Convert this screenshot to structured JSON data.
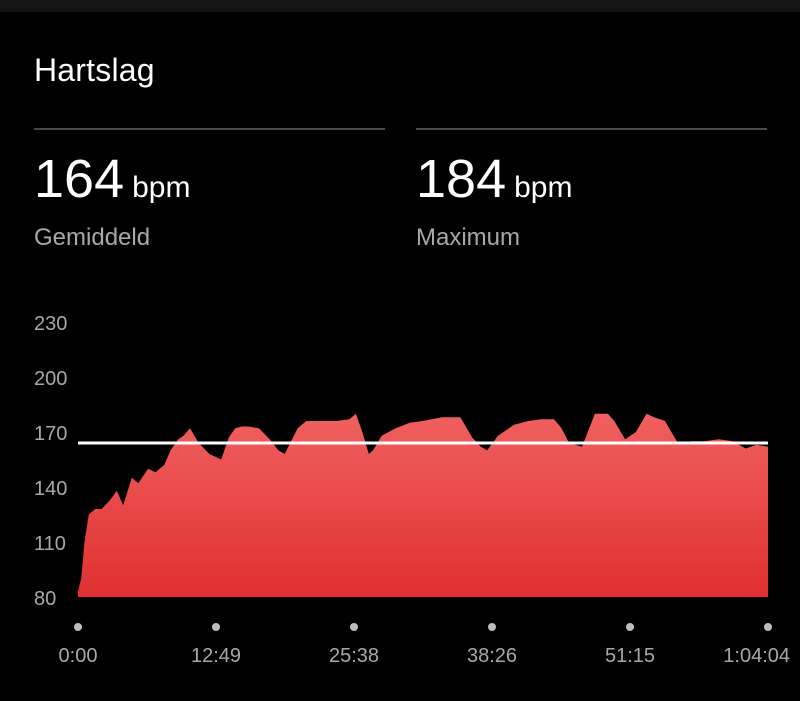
{
  "header": {
    "title": "Hartslag"
  },
  "stats": [
    {
      "value": "164",
      "unit": "bpm",
      "label": "Gemiddeld"
    },
    {
      "value": "184",
      "unit": "bpm",
      "label": "Maximum"
    }
  ],
  "colors": {
    "background": "#000000",
    "fill_top": "#f06060",
    "fill_bottom": "#e03030",
    "average_line": "#ffffff",
    "axis_text": "#a8a8a8"
  },
  "chart_data": {
    "type": "area",
    "title": "",
    "xlabel": "",
    "ylabel": "",
    "yticks": [
      "230",
      "200",
      "170",
      "140",
      "110",
      "80"
    ],
    "ylim": [
      80,
      230
    ],
    "xticks": [
      "0:00",
      "12:49",
      "25:38",
      "38:26",
      "51:15",
      "1:04:04"
    ],
    "xlim_minutes": [
      0,
      64.07
    ],
    "average_line": 164,
    "grid": false,
    "series": [
      {
        "x_minutes": [
          0,
          0.3,
          0.6,
          1.0,
          1.6,
          2.2,
          3.0,
          3.6,
          4.2,
          5.0,
          5.6,
          6.5,
          7.2,
          8.0,
          8.6,
          9.3,
          9.8,
          10.4,
          11.2,
          12.2,
          13.3,
          14.0,
          14.6,
          15.2,
          15.8,
          16.8,
          17.8,
          18.6,
          19.2,
          19.7,
          20.4,
          21.2,
          22.5,
          24.0,
          25.2,
          25.8,
          26.4,
          27.0,
          27.4,
          28.2,
          29.5,
          30.8,
          32.0,
          33.8,
          35.5,
          36.6,
          37.4,
          38.0,
          39.0,
          40.5,
          41.8,
          43.0,
          44.2,
          44.9,
          45.6,
          46.8,
          48.0,
          49.2,
          49.8,
          50.8,
          51.8,
          52.8,
          53.5,
          54.5,
          55.7,
          57.0,
          58.2,
          59.5,
          60.8,
          62.0,
          63.0,
          64.07
        ],
        "bpm": [
          83,
          90,
          110,
          125,
          128,
          128,
          133,
          138,
          130,
          145,
          142,
          150,
          148,
          152,
          160,
          166,
          168,
          172,
          164,
          158,
          155,
          167,
          172,
          173,
          173,
          172,
          166,
          160,
          158,
          164,
          172,
          176,
          176,
          176,
          177,
          180,
          170,
          158,
          160,
          168,
          172,
          175,
          176,
          178,
          178,
          167,
          162,
          160,
          168,
          174,
          176,
          177,
          177,
          172,
          164,
          162,
          180,
          180,
          176,
          166,
          170,
          180,
          178,
          176,
          164,
          165,
          165,
          166,
          165,
          161,
          163,
          162
        ]
      }
    ]
  }
}
